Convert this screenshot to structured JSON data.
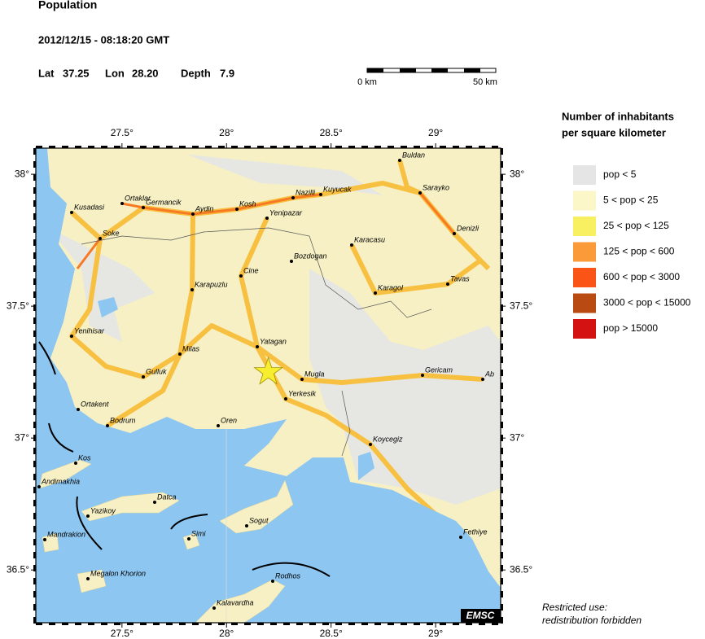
{
  "header": {
    "title": "Population",
    "datetime": "2012/12/15 - 08:18:20 GMT",
    "lat_label": "Lat",
    "lat": 37.25,
    "lon_label": "Lon",
    "lon": {
      "value": 28.2,
      "label": "28.20"
    },
    "depth_label": "Depth",
    "depth": 7.9
  },
  "scale_bar": {
    "start": "0 km",
    "end": "50 km"
  },
  "map": {
    "xlim": [
      27.088,
      29.311
    ],
    "ylim": [
      36.3,
      38.099
    ],
    "xticks": [
      {
        "value": 27.5,
        "label": "27.5°"
      },
      {
        "value": 28,
        "label": "28°"
      },
      {
        "value": 28.5,
        "label": "28.5°"
      },
      {
        "value": 29,
        "label": "29°"
      }
    ],
    "yticks": [
      {
        "value": 38,
        "label": "38°"
      },
      {
        "value": 37.5,
        "label": "37.5°"
      },
      {
        "value": 37,
        "label": "37°"
      },
      {
        "value": 36.5,
        "label": "36.5°"
      }
    ],
    "towns": [
      "Buldan",
      "Sarayko",
      "Denizli",
      "Kuyucak",
      "Nazilli",
      "Kosh",
      "Yenipazar",
      "Aydin",
      "Germancik",
      "Ortaklar",
      "Kusadasi",
      "Soke",
      "Karacasu",
      "Bozdogan",
      "Cine",
      "Karagol",
      "Tavas",
      "Karapuzlu",
      "Yenihisar",
      "Milas",
      "Yatagan",
      "Gulluk",
      "Mugla",
      "Gericam",
      "Ab",
      "Yerkesik",
      "Ortakent",
      "Bodrum",
      "Oren",
      "Koycegiz",
      "Kos",
      "Andimakhia",
      "Datca",
      "Yazikoy",
      "Sogut",
      "Simi",
      "Fethiye",
      "Mandrakion",
      "Megalon Khorion",
      "Rodhos",
      "Kalavardha"
    ],
    "credit": "EMSC"
  },
  "legend": {
    "title": [
      "Number of inhabitants",
      "per square kilometer"
    ],
    "items": [
      {
        "label": "pop < 5",
        "color": "#e5e5e5"
      },
      {
        "label": "5 < pop < 25",
        "color": "#fbf7c8"
      },
      {
        "label": "25 < pop < 125",
        "color": "#f8f060"
      },
      {
        "label": "125 < pop < 600",
        "color": "#fb9a38"
      },
      {
        "label": "600 < pop < 3000",
        "color": "#fa5416"
      },
      {
        "label": "3000 < pop < 15000",
        "color": "#b84a12"
      },
      {
        "label": "pop > 15000",
        "color": "#d41212"
      }
    ]
  },
  "notice": [
    "Restricted use:",
    "redistribution forbidden"
  ]
}
